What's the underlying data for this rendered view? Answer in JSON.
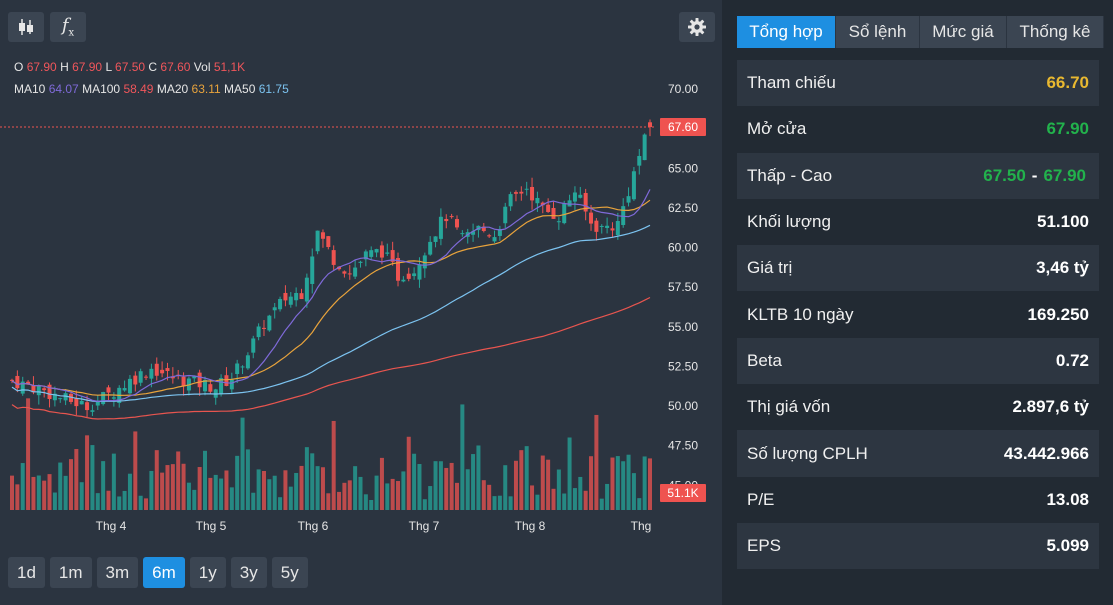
{
  "toolbar": {
    "candle_icon": "candlestick-icon",
    "fx_label": "f",
    "fx_sub": "x",
    "settings_icon": "gear-icon"
  },
  "ohlc": {
    "o_label": "O",
    "o": "67.90",
    "h_label": "H",
    "h": "67.90",
    "l_label": "L",
    "l": "67.50",
    "c_label": "C",
    "c": "67.60",
    "vol_label": "Vol",
    "vol": "51,1K"
  },
  "ma": {
    "ma10_label": "MA10",
    "ma10": "64.07",
    "ma100_label": "MA100",
    "ma100": "58.49",
    "ma20_label": "MA20",
    "ma20": "63.11",
    "ma50_label": "MA50",
    "ma50": "61.75"
  },
  "colors": {
    "up": "#26a69a",
    "down": "#ef5350",
    "ma10": "#7f6ad9",
    "ma20": "#e8a33c",
    "ma50": "#7cc3f0",
    "ma100": "#e8554f",
    "price_badge": "#ef5350"
  },
  "chart_data": {
    "type": "candlestick",
    "yaxis_ticks": [
      "70.00",
      "65.00",
      "62.50",
      "60.00",
      "57.50",
      "55.00",
      "52.50",
      "50.00",
      "47.50",
      "45.00"
    ],
    "ylim": [
      45.5,
      71.3
    ],
    "xaxis_labels": [
      "Thg 4",
      "Thg 5",
      "Thg 6",
      "Thg 7",
      "Thg 8",
      "Thg"
    ],
    "last_price": "67.60",
    "last_volume": "51.1K",
    "ma10_last": 64.07,
    "ma20_last": 63.11,
    "ma50_last": 61.75,
    "ma100_last": 58.49,
    "close_path": [
      [
        0,
        51.6
      ],
      [
        5,
        51.1
      ],
      [
        10,
        50.4
      ],
      [
        14,
        50.0
      ],
      [
        18,
        50.7
      ],
      [
        22,
        51.6
      ],
      [
        26,
        52.4
      ],
      [
        30,
        51.8
      ],
      [
        34,
        51.5
      ],
      [
        38,
        51.2
      ],
      [
        41,
        51.8
      ],
      [
        44,
        53.4
      ],
      [
        47,
        55.2
      ],
      [
        51,
        56.8
      ],
      [
        54,
        57.2
      ],
      [
        57,
        61.0
      ],
      [
        60,
        59.3
      ],
      [
        63,
        58.4
      ],
      [
        66,
        59.5
      ],
      [
        69,
        59.8
      ],
      [
        72,
        58.2
      ],
      [
        75,
        58.6
      ],
      [
        78,
        60.6
      ],
      [
        81,
        62.0
      ],
      [
        84,
        60.5
      ],
      [
        87,
        61.2
      ],
      [
        90,
        60.8
      ],
      [
        93,
        63.0
      ],
      [
        96,
        63.8
      ],
      [
        99,
        62.4
      ],
      [
        102,
        62.0
      ],
      [
        105,
        63.6
      ],
      [
        108,
        61.5
      ],
      [
        110,
        61.2
      ],
      [
        113,
        61.5
      ],
      [
        115,
        63.6
      ],
      [
        117,
        65.8
      ],
      [
        119,
        67.6
      ]
    ]
  },
  "periods": [
    "1d",
    "1m",
    "3m",
    "6m",
    "1y",
    "3y",
    "5y"
  ],
  "active_period": "6m",
  "tabs": [
    "Tổng hợp",
    "Sổ lệnh",
    "Mức giá",
    "Thống kê"
  ],
  "active_tab": "Tổng hợp",
  "stats": [
    {
      "label": "Tham chiếu",
      "value": "66.70",
      "color": "yellow"
    },
    {
      "label": "Mở cửa",
      "value": "67.90",
      "color": "green"
    },
    {
      "label": "Thấp - Cao",
      "low": "67.50",
      "sep": "-",
      "high": "67.90",
      "color": "green"
    },
    {
      "label": "Khối lượng",
      "value": "51.100",
      "color": "white"
    },
    {
      "label": "Giá trị",
      "value": "3,46 tỷ",
      "color": "white"
    },
    {
      "label": "KLTB 10 ngày",
      "value": "169.250",
      "color": "white"
    },
    {
      "label": "Beta",
      "value": "0.72",
      "color": "white"
    },
    {
      "label": "Thị giá vốn",
      "value": "2.897,6 tỷ",
      "color": "white"
    },
    {
      "label": "Số lượng CPLH",
      "value": "43.442.966",
      "color": "white"
    },
    {
      "label": "P/E",
      "value": "13.08",
      "color": "white"
    },
    {
      "label": "EPS",
      "value": "5.099",
      "color": "white"
    }
  ]
}
